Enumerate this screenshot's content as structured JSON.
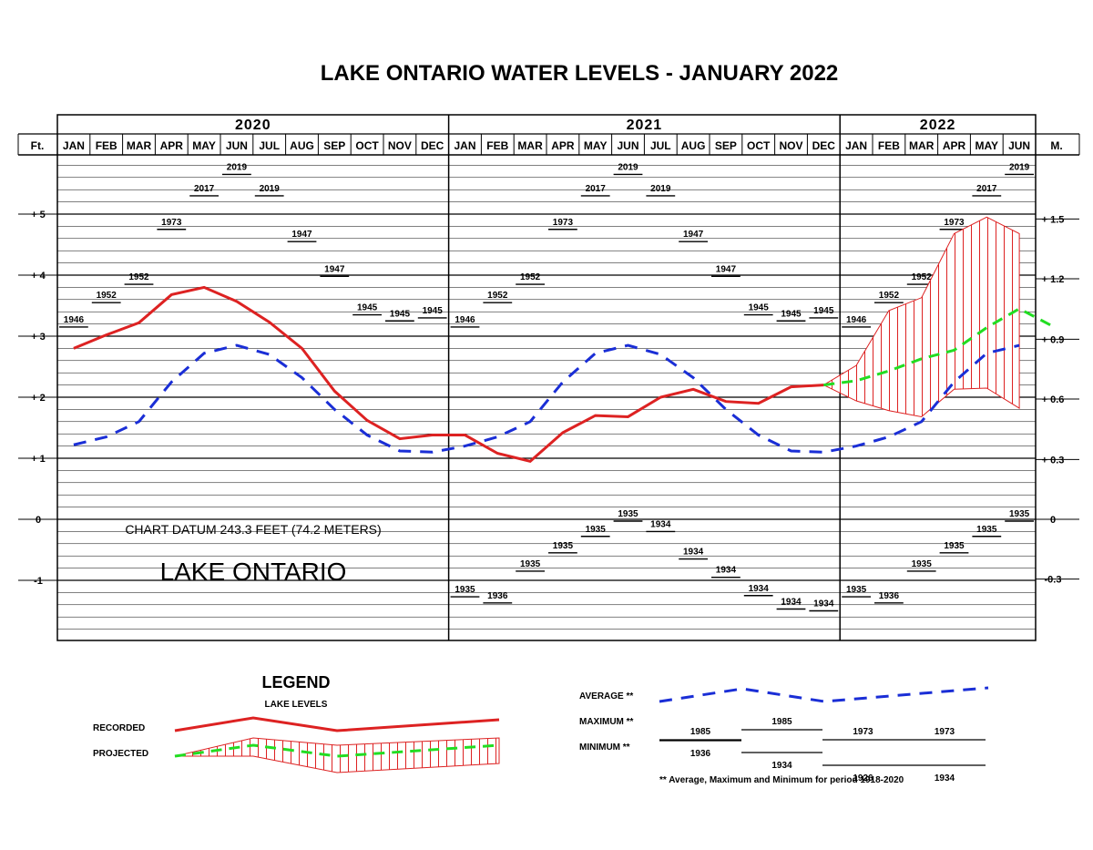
{
  "chart_data": {
    "type": "line",
    "title": "LAKE ONTARIO WATER LEVELS - JANUARY 2022",
    "years": [
      "2020",
      "2021",
      "2022"
    ],
    "left_axis_label": "Ft.",
    "right_axis_label": "M.",
    "months": [
      "JAN",
      "FEB",
      "MAR",
      "APR",
      "MAY",
      "JUN",
      "JUL",
      "AUG",
      "SEP",
      "OCT",
      "NOV",
      "DEC",
      "JAN",
      "FEB",
      "MAR",
      "APR",
      "MAY",
      "JUN",
      "JUL",
      "AUG",
      "SEP",
      "OCT",
      "NOV",
      "DEC",
      "JAN",
      "FEB",
      "MAR",
      "APR",
      "MAY",
      "JUN"
    ],
    "left_ticks": [
      {
        "v": 5,
        "label": "+ 5"
      },
      {
        "v": 4,
        "label": "+ 4"
      },
      {
        "v": 3,
        "label": "+ 3"
      },
      {
        "v": 2,
        "label": "+ 2"
      },
      {
        "v": 1,
        "label": "+ 1"
      },
      {
        "v": 0,
        "label": "0"
      },
      {
        "v": -1,
        "label": "-1"
      }
    ],
    "right_ticks": [
      {
        "v": 4.92,
        "label": "+ 1.5"
      },
      {
        "v": 3.94,
        "label": "+ 1.2"
      },
      {
        "v": 2.95,
        "label": "+ 0.9"
      },
      {
        "v": 1.97,
        "label": "+ 0.6"
      },
      {
        "v": 0.98,
        "label": "+ 0.3"
      },
      {
        "v": 0,
        "label": "0"
      },
      {
        "v": -0.98,
        "label": "-0.3"
      }
    ],
    "ylim": [
      -2.0,
      6.0
    ],
    "recorded": [
      2.8,
      3.02,
      3.22,
      3.68,
      3.8,
      3.57,
      3.23,
      2.8,
      2.1,
      1.62,
      1.32,
      1.38,
      1.38,
      1.08,
      0.95,
      1.42,
      1.7,
      1.68,
      2.0,
      2.13,
      1.93,
      1.9,
      2.17,
      2.2
    ],
    "projected_mid": [
      2.2,
      2.27,
      2.43,
      2.63,
      2.77,
      3.14,
      3.45,
      3.17
    ],
    "projected_upper": [
      2.2,
      2.52,
      3.42,
      3.63,
      4.68,
      4.95,
      4.68
    ],
    "projected_lower": [
      2.2,
      1.94,
      1.78,
      1.68,
      2.13,
      2.15,
      1.82
    ],
    "average": [
      1.22,
      1.35,
      1.6,
      2.25,
      2.72,
      2.85,
      2.7,
      2.32,
      1.8,
      1.38,
      1.12,
      1.1,
      1.2,
      1.35,
      1.6,
      2.25,
      2.72,
      2.85,
      2.7,
      2.32,
      1.8,
      1.38,
      1.12,
      1.1,
      1.2,
      1.35,
      1.6,
      2.25,
      2.72,
      2.85
    ],
    "maximum_records": [
      {
        "year": "1946",
        "v": 3.15
      },
      {
        "year": "1952",
        "v": 3.55
      },
      {
        "year": "1952",
        "v": 3.85
      },
      {
        "year": "1973",
        "v": 4.75
      },
      {
        "year": "2017",
        "v": 5.3
      },
      {
        "year": "2019",
        "v": 5.65
      },
      {
        "year": "2019",
        "v": 5.3
      },
      {
        "year": "1947",
        "v": 4.55
      },
      {
        "year": "1947",
        "v": 3.98
      },
      {
        "year": "1945",
        "v": 3.35
      },
      {
        "year": "1945",
        "v": 3.25
      },
      {
        "year": "1945",
        "v": 3.3
      }
    ],
    "minimum_records": [
      {
        "year": "1935",
        "v": -1.27
      },
      {
        "year": "1936",
        "v": -1.37
      },
      {
        "year": "1935",
        "v": -0.85
      },
      {
        "year": "1935",
        "v": -0.55
      },
      {
        "year": "1935",
        "v": -0.28
      },
      {
        "year": "1935",
        "v": -0.03
      },
      {
        "year": "1934",
        "v": -0.2
      },
      {
        "year": "1934",
        "v": -0.65
      },
      {
        "year": "1934",
        "v": -0.95
      },
      {
        "year": "1934",
        "v": -1.25
      },
      {
        "year": "1934",
        "v": -1.47
      },
      {
        "year": "1934",
        "v": -1.5
      }
    ],
    "annotations": {
      "datum": "CHART DATUM  243.3 FEET (74.2 METERS)",
      "lake_name": "LAKE ONTARIO"
    },
    "colors": {
      "recorded": "#dd2222",
      "projected_hatch": "#dd2222",
      "projected_line": "#22dd22",
      "average": "#1a2ed6",
      "grid": "#000000"
    }
  },
  "legend": {
    "title": "LEGEND",
    "subtitle": "LAKE LEVELS",
    "recorded": "RECORDED",
    "projected": "PROJECTED",
    "average": "AVERAGE **",
    "maximum": "MAXIMUM **",
    "minimum": "MINIMUM **",
    "max_years": [
      "1985",
      "1985",
      "1973",
      "1973"
    ],
    "min_years": [
      "1936",
      "1934",
      "1926",
      "1934"
    ],
    "footnote": "** Average, Maximum and Minimum for period 1918-2020"
  }
}
